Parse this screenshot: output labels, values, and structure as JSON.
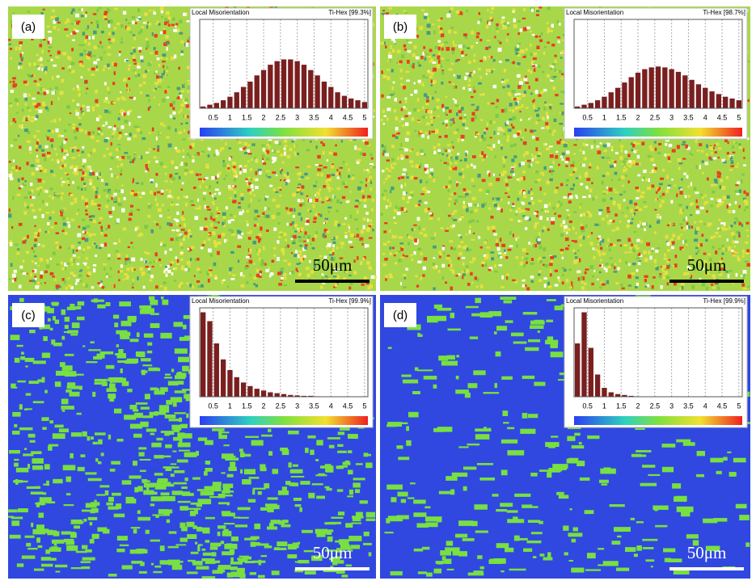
{
  "chart_data": [
    {
      "type": "histogram",
      "label": "(a)",
      "title": "Local Misorientation",
      "subtitle": "Ti-Hex [99.3%]",
      "scale_bar": "50μm",
      "map": "green",
      "bins": [
        0.1,
        0.3,
        0.5,
        0.7,
        0.9,
        1.1,
        1.3,
        1.5,
        1.7,
        1.9,
        2.1,
        2.3,
        2.5,
        2.7,
        2.9,
        3.1,
        3.3,
        3.5,
        3.7,
        3.9,
        4.1,
        4.3,
        4.5,
        4.7,
        4.9,
        5.1
      ],
      "values": [
        0.02,
        0.04,
        0.06,
        0.09,
        0.13,
        0.18,
        0.24,
        0.3,
        0.37,
        0.43,
        0.49,
        0.53,
        0.55,
        0.55,
        0.53,
        0.49,
        0.43,
        0.37,
        0.3,
        0.24,
        0.18,
        0.14,
        0.11,
        0.09,
        0.07
      ],
      "xlim": [
        0.1,
        5.1
      ],
      "xticks": [
        0.5,
        1,
        1.5,
        2,
        2.5,
        3,
        3.5,
        4,
        4.5,
        5
      ],
      "color": "#7a1f1f"
    },
    {
      "type": "histogram",
      "label": "(b)",
      "title": "Local Misorientation",
      "subtitle": "Ti-Hex [98.7%]",
      "scale_bar": "50μm",
      "map": "green",
      "bins": [
        0.1,
        0.3,
        0.5,
        0.7,
        0.9,
        1.1,
        1.3,
        1.5,
        1.7,
        1.9,
        2.1,
        2.3,
        2.5,
        2.7,
        2.9,
        3.1,
        3.3,
        3.5,
        3.7,
        3.9,
        4.1,
        4.3,
        4.5,
        4.7,
        4.9,
        5.1
      ],
      "values": [
        0.02,
        0.04,
        0.06,
        0.09,
        0.13,
        0.18,
        0.23,
        0.29,
        0.35,
        0.4,
        0.44,
        0.46,
        0.47,
        0.46,
        0.44,
        0.41,
        0.37,
        0.32,
        0.27,
        0.23,
        0.19,
        0.16,
        0.13,
        0.11,
        0.09
      ],
      "xlim": [
        0.1,
        5.1
      ],
      "xticks": [
        0.5,
        1,
        1.5,
        2,
        2.5,
        3,
        3.5,
        4,
        4.5,
        5
      ],
      "color": "#7a1f1f"
    },
    {
      "type": "histogram",
      "label": "(c)",
      "title": "Local Misorientation",
      "subtitle": "Ti-Hex [99.9%]",
      "scale_bar": "50μm",
      "map": "blue",
      "bins": [
        0.1,
        0.3,
        0.5,
        0.7,
        0.9,
        1.1,
        1.3,
        1.5,
        1.7,
        1.9,
        2.1,
        2.3,
        2.5,
        2.7,
        2.9,
        3.1,
        3.3,
        3.5,
        3.7,
        3.9,
        4.1,
        4.3,
        4.5,
        4.7,
        4.9,
        5.1
      ],
      "values": [
        0.95,
        0.85,
        0.6,
        0.42,
        0.3,
        0.22,
        0.16,
        0.12,
        0.09,
        0.07,
        0.05,
        0.04,
        0.03,
        0.02,
        0.015,
        0.01,
        0.01,
        0.005,
        0,
        0,
        0,
        0,
        0,
        0,
        0
      ],
      "xlim": [
        0.1,
        5.1
      ],
      "xticks": [
        0.5,
        1,
        1.5,
        2,
        2.5,
        3,
        3.5,
        4,
        4.5,
        5
      ],
      "color": "#7a1f1f"
    },
    {
      "type": "histogram",
      "label": "(d)",
      "title": "Local Misorientation",
      "subtitle": "Ti-Hex [99.9%]",
      "scale_bar": "50μm",
      "map": "blue",
      "bins": [
        0.1,
        0.3,
        0.5,
        0.7,
        0.9,
        1.1,
        1.3,
        1.5,
        1.7,
        1.9,
        2.1,
        2.3,
        2.5,
        2.7,
        2.9,
        3.1,
        3.3,
        3.5,
        3.7,
        3.9,
        4.1,
        4.3,
        4.5,
        4.7,
        4.9,
        5.1
      ],
      "values": [
        0.6,
        0.95,
        0.55,
        0.25,
        0.1,
        0.05,
        0.03,
        0.02,
        0.01,
        0.005,
        0,
        0,
        0,
        0,
        0,
        0,
        0,
        0,
        0,
        0,
        0,
        0,
        0,
        0,
        0
      ],
      "xlim": [
        0.1,
        5.1
      ],
      "xticks": [
        0.5,
        1,
        1.5,
        2,
        2.5,
        3,
        3.5,
        4,
        4.5,
        5
      ],
      "color": "#7a1f1f"
    }
  ]
}
